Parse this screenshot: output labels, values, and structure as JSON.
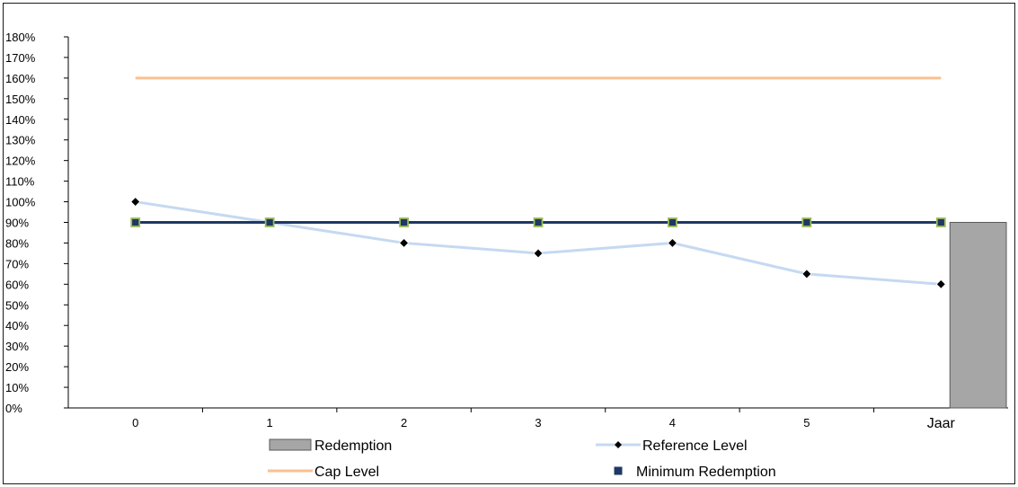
{
  "chart_data": {
    "type": "line",
    "title": "",
    "xlabel": "",
    "ylabel": "",
    "categories": [
      "0",
      "1",
      "2",
      "3",
      "4",
      "5",
      "Jaar"
    ],
    "ylim": [
      0,
      180
    ],
    "y_tick_step": 10,
    "y_tick_format": "percent",
    "grid": false,
    "legend_position": "bottom",
    "series": [
      {
        "name": "Redemption",
        "kind": "bar",
        "color": "#a6a6a6",
        "values": [
          null,
          null,
          null,
          null,
          null,
          null,
          90
        ]
      },
      {
        "name": "Reference Level",
        "kind": "line-diamond",
        "color": "#c5d9f1",
        "marker_color": "#000000",
        "values": [
          100,
          90,
          80,
          75,
          80,
          65,
          60
        ]
      },
      {
        "name": "Cap Level",
        "kind": "line",
        "color": "#fac090",
        "values": [
          160,
          160,
          160,
          160,
          160,
          160,
          160
        ]
      },
      {
        "name": "Minimum Redemption",
        "kind": "line-square",
        "color": "#1f3864",
        "marker_color": "#9bbb59",
        "values": [
          90,
          90,
          90,
          90,
          90,
          90,
          90
        ]
      }
    ]
  }
}
